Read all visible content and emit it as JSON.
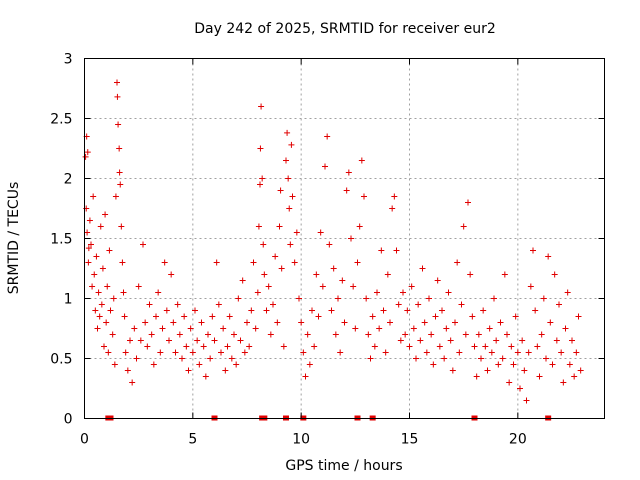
{
  "chart_data": {
    "type": "scatter",
    "title": "Day 242 of 2025, SRMTID for receiver eur2",
    "xlabel": "GPS time / hours",
    "ylabel": "SRMTID / TECUs",
    "xlim": [
      0,
      24.0
    ],
    "ylim": [
      0,
      3
    ],
    "x_ticks": [
      0,
      5,
      10,
      15,
      20
    ],
    "x_tick_labels": [
      "0",
      "5",
      "10",
      "15",
      "20"
    ],
    "y_ticks": [
      0,
      0.5,
      1,
      1.5,
      2,
      2.5,
      3
    ],
    "y_tick_labels": [
      "0",
      "0.5",
      "1",
      "1.5",
      "2",
      "2.5",
      "3"
    ],
    "grid": true,
    "marker": "plus",
    "series_color": "#e00000",
    "series": [
      {
        "name": "SRMTID",
        "points": [
          [
            0.05,
            2.18
          ],
          [
            0.08,
            1.75
          ],
          [
            0.1,
            2.35
          ],
          [
            0.12,
            1.55
          ],
          [
            0.15,
            2.22
          ],
          [
            0.18,
            1.3
          ],
          [
            0.2,
            1.42
          ],
          [
            0.25,
            1.65
          ],
          [
            0.3,
            1.45
          ],
          [
            0.35,
            1.1
          ],
          [
            0.4,
            1.85
          ],
          [
            0.45,
            1.2
          ],
          [
            0.5,
            0.9
          ],
          [
            0.55,
            1.35
          ],
          [
            0.6,
            0.75
          ],
          [
            0.65,
            1.05
          ],
          [
            0.7,
            0.85
          ],
          [
            0.75,
            1.6
          ],
          [
            0.8,
            0.95
          ],
          [
            0.85,
            1.25
          ],
          [
            0.9,
            0.6
          ],
          [
            0.95,
            1.7
          ],
          [
            1.0,
            0.8
          ],
          [
            1.05,
            1.1
          ],
          [
            1.1,
            0.55
          ],
          [
            1.15,
            1.4
          ],
          [
            1.2,
            0.9
          ],
          [
            1.3,
            0.7
          ],
          [
            1.35,
            1.0
          ],
          [
            1.4,
            0.45
          ],
          [
            1.45,
            1.85
          ],
          [
            1.5,
            2.8
          ],
          [
            1.52,
            2.68
          ],
          [
            1.55,
            2.45
          ],
          [
            1.6,
            2.25
          ],
          [
            1.62,
            2.05
          ],
          [
            1.65,
            1.95
          ],
          [
            1.7,
            1.6
          ],
          [
            1.75,
            1.3
          ],
          [
            1.8,
            1.05
          ],
          [
            1.85,
            0.85
          ],
          [
            1.9,
            0.55
          ],
          [
            2.0,
            0.4
          ],
          [
            2.1,
            0.65
          ],
          [
            2.2,
            0.3
          ],
          [
            2.3,
            0.75
          ],
          [
            2.4,
            0.5
          ],
          [
            2.5,
            1.1
          ],
          [
            2.6,
            0.65
          ],
          [
            2.7,
            1.45
          ],
          [
            2.8,
            0.8
          ],
          [
            2.9,
            0.6
          ],
          [
            3.0,
            0.95
          ],
          [
            3.1,
            0.7
          ],
          [
            3.2,
            0.45
          ],
          [
            3.3,
            0.85
          ],
          [
            3.4,
            1.05
          ],
          [
            3.5,
            0.55
          ],
          [
            3.6,
            0.75
          ],
          [
            3.7,
            1.3
          ],
          [
            3.8,
            0.9
          ],
          [
            3.9,
            0.65
          ],
          [
            4.0,
            1.2
          ],
          [
            4.1,
            0.8
          ],
          [
            4.2,
            0.55
          ],
          [
            4.3,
            0.95
          ],
          [
            4.4,
            0.7
          ],
          [
            4.5,
            0.5
          ],
          [
            4.6,
            0.85
          ],
          [
            4.7,
            0.6
          ],
          [
            4.8,
            0.4
          ],
          [
            4.9,
            0.75
          ],
          [
            5.0,
            0.55
          ],
          [
            5.1,
            0.9
          ],
          [
            5.2,
            0.65
          ],
          [
            5.3,
            0.45
          ],
          [
            5.4,
            0.8
          ],
          [
            5.5,
            0.6
          ],
          [
            5.6,
            0.35
          ],
          [
            5.7,
            0.7
          ],
          [
            5.8,
            0.5
          ],
          [
            5.9,
            0.85
          ],
          [
            6.0,
            0.65
          ],
          [
            6.1,
            1.3
          ],
          [
            6.2,
            0.95
          ],
          [
            6.3,
            0.55
          ],
          [
            6.4,
            0.75
          ],
          [
            6.5,
            0.4
          ],
          [
            6.6,
            0.6
          ],
          [
            6.7,
            0.85
          ],
          [
            6.8,
            0.5
          ],
          [
            6.9,
            0.7
          ],
          [
            7.0,
            0.45
          ],
          [
            7.1,
            1.0
          ],
          [
            7.2,
            0.65
          ],
          [
            7.3,
            1.15
          ],
          [
            7.4,
            0.55
          ],
          [
            7.5,
            0.8
          ],
          [
            7.6,
            0.6
          ],
          [
            7.7,
            0.9
          ],
          [
            7.8,
            1.3
          ],
          [
            7.9,
            0.75
          ],
          [
            8.0,
            1.05
          ],
          [
            8.05,
            1.6
          ],
          [
            8.1,
            1.95
          ],
          [
            8.12,
            2.25
          ],
          [
            8.15,
            2.6
          ],
          [
            8.2,
            2.0
          ],
          [
            8.25,
            1.45
          ],
          [
            8.3,
            1.2
          ],
          [
            8.4,
            0.9
          ],
          [
            8.5,
            1.1
          ],
          [
            8.6,
            0.7
          ],
          [
            8.7,
            0.95
          ],
          [
            8.8,
            1.35
          ],
          [
            8.9,
            0.8
          ],
          [
            9.0,
            1.6
          ],
          [
            9.05,
            1.9
          ],
          [
            9.1,
            1.25
          ],
          [
            9.2,
            0.6
          ],
          [
            9.3,
            2.15
          ],
          [
            9.35,
            2.38
          ],
          [
            9.4,
            2.0
          ],
          [
            9.45,
            1.75
          ],
          [
            9.5,
            1.45
          ],
          [
            9.55,
            2.28
          ],
          [
            9.6,
            1.85
          ],
          [
            9.7,
            1.3
          ],
          [
            9.8,
            1.55
          ],
          [
            9.9,
            1.0
          ],
          [
            10.0,
            0.8
          ],
          [
            10.1,
            0.55
          ],
          [
            10.2,
            0.35
          ],
          [
            10.3,
            0.7
          ],
          [
            10.4,
            0.45
          ],
          [
            10.5,
            0.9
          ],
          [
            10.6,
            0.6
          ],
          [
            10.7,
            1.2
          ],
          [
            10.8,
            0.85
          ],
          [
            10.9,
            1.55
          ],
          [
            11.0,
            1.1
          ],
          [
            11.1,
            2.1
          ],
          [
            11.2,
            2.35
          ],
          [
            11.3,
            1.45
          ],
          [
            11.4,
            0.9
          ],
          [
            11.5,
            1.25
          ],
          [
            11.6,
            0.7
          ],
          [
            11.7,
            1.0
          ],
          [
            11.8,
            0.55
          ],
          [
            11.9,
            1.15
          ],
          [
            12.0,
            0.8
          ],
          [
            12.1,
            1.9
          ],
          [
            12.2,
            2.05
          ],
          [
            12.3,
            1.5
          ],
          [
            12.4,
            1.1
          ],
          [
            12.5,
            0.75
          ],
          [
            12.6,
            1.3
          ],
          [
            12.7,
            1.6
          ],
          [
            12.8,
            2.15
          ],
          [
            12.9,
            1.85
          ],
          [
            13.0,
            1.0
          ],
          [
            13.1,
            0.7
          ],
          [
            13.2,
            0.5
          ],
          [
            13.3,
            0.85
          ],
          [
            13.4,
            0.6
          ],
          [
            13.5,
            1.05
          ],
          [
            13.6,
            0.75
          ],
          [
            13.7,
            1.4
          ],
          [
            13.8,
            0.9
          ],
          [
            13.9,
            0.55
          ],
          [
            14.0,
            1.2
          ],
          [
            14.1,
            0.8
          ],
          [
            14.2,
            1.75
          ],
          [
            14.3,
            1.85
          ],
          [
            14.4,
            1.4
          ],
          [
            14.5,
            0.95
          ],
          [
            14.6,
            0.65
          ],
          [
            14.7,
            1.05
          ],
          [
            14.8,
            0.7
          ],
          [
            14.9,
            0.9
          ],
          [
            15.0,
            0.6
          ],
          [
            15.1,
            1.1
          ],
          [
            15.2,
            0.75
          ],
          [
            15.3,
            0.5
          ],
          [
            15.4,
            0.95
          ],
          [
            15.5,
            0.65
          ],
          [
            15.6,
            1.25
          ],
          [
            15.7,
            0.8
          ],
          [
            15.8,
            0.55
          ],
          [
            15.9,
            1.0
          ],
          [
            16.0,
            0.7
          ],
          [
            16.1,
            0.45
          ],
          [
            16.2,
            0.85
          ],
          [
            16.3,
            1.15
          ],
          [
            16.4,
            0.6
          ],
          [
            16.5,
            0.9
          ],
          [
            16.6,
            0.5
          ],
          [
            16.7,
            0.75
          ],
          [
            16.8,
            1.05
          ],
          [
            16.9,
            0.65
          ],
          [
            17.0,
            0.4
          ],
          [
            17.1,
            0.8
          ],
          [
            17.2,
            1.3
          ],
          [
            17.3,
            0.55
          ],
          [
            17.4,
            0.95
          ],
          [
            17.5,
            1.6
          ],
          [
            17.6,
            0.7
          ],
          [
            17.7,
            1.8
          ],
          [
            17.8,
            1.2
          ],
          [
            17.9,
            0.85
          ],
          [
            18.0,
            0.6
          ],
          [
            18.1,
            0.35
          ],
          [
            18.2,
            0.7
          ],
          [
            18.3,
            0.5
          ],
          [
            18.4,
            0.9
          ],
          [
            18.5,
            0.6
          ],
          [
            18.6,
            0.4
          ],
          [
            18.7,
            0.75
          ],
          [
            18.8,
            0.55
          ],
          [
            18.9,
            1.0
          ],
          [
            19.0,
            0.65
          ],
          [
            19.1,
            0.45
          ],
          [
            19.2,
            0.8
          ],
          [
            19.3,
            0.5
          ],
          [
            19.4,
            1.2
          ],
          [
            19.5,
            0.7
          ],
          [
            19.6,
            0.3
          ],
          [
            19.7,
            0.6
          ],
          [
            19.8,
            0.45
          ],
          [
            19.9,
            0.85
          ],
          [
            20.0,
            0.55
          ],
          [
            20.1,
            0.25
          ],
          [
            20.2,
            0.65
          ],
          [
            20.3,
            0.4
          ],
          [
            20.4,
            0.15
          ],
          [
            20.5,
            0.55
          ],
          [
            20.6,
            1.1
          ],
          [
            20.7,
            1.4
          ],
          [
            20.8,
            0.9
          ],
          [
            20.9,
            0.6
          ],
          [
            21.0,
            0.35
          ],
          [
            21.1,
            0.7
          ],
          [
            21.2,
            1.0
          ],
          [
            21.3,
            0.5
          ],
          [
            21.4,
            1.35
          ],
          [
            21.5,
            0.8
          ],
          [
            21.6,
            0.45
          ],
          [
            21.7,
            1.2
          ],
          [
            21.8,
            0.65
          ],
          [
            21.9,
            0.95
          ],
          [
            22.0,
            0.55
          ],
          [
            22.1,
            0.3
          ],
          [
            22.2,
            0.75
          ],
          [
            22.3,
            1.05
          ],
          [
            22.4,
            0.45
          ],
          [
            22.5,
            0.65
          ],
          [
            22.6,
            0.35
          ],
          [
            22.7,
            0.55
          ],
          [
            22.8,
            0.85
          ],
          [
            22.9,
            0.4
          ]
        ]
      }
    ],
    "zero_markers_x": [
      1.1,
      1.2,
      6.0,
      8.2,
      8.3,
      9.3,
      10.1,
      12.6,
      13.3,
      18.0,
      21.4
    ]
  }
}
